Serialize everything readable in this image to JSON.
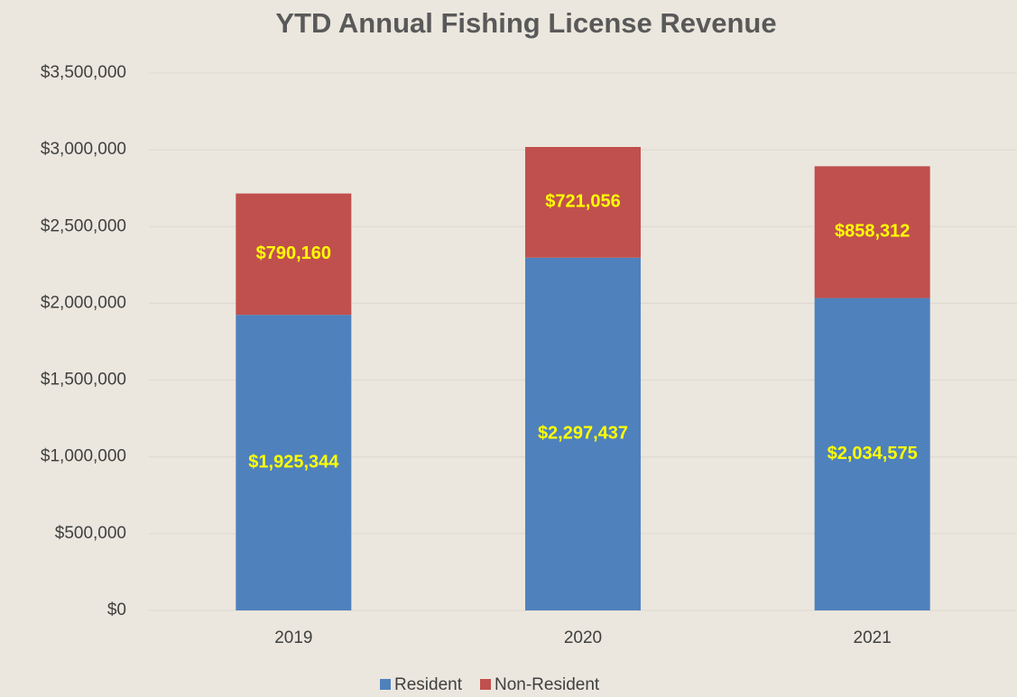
{
  "chart_data": {
    "type": "stacked_bar",
    "title": "YTD Annual Fishing License Revenue",
    "categories": [
      "2019",
      "2020",
      "2021"
    ],
    "series": [
      {
        "name": "Resident",
        "color": "#4f81bd",
        "values": [
          1925344,
          2297437,
          2034575
        ],
        "value_labels": [
          "$1,925,344",
          "$2,297,437",
          "$2,034,575"
        ]
      },
      {
        "name": "Non-Resident",
        "color": "#c0504d",
        "values": [
          790160,
          721056,
          858312
        ],
        "value_labels": [
          "$790,160",
          "$721,056",
          "$858,312"
        ]
      }
    ],
    "ylim": [
      0,
      3500000
    ],
    "yticks": [
      {
        "value": 0,
        "label": "$0"
      },
      {
        "value": 500000,
        "label": "$500,000"
      },
      {
        "value": 1000000,
        "label": "$1,000,000"
      },
      {
        "value": 1500000,
        "label": "$1,500,000"
      },
      {
        "value": 2000000,
        "label": "$2,000,000"
      },
      {
        "value": 2500000,
        "label": "$2,500,000"
      },
      {
        "value": 3000000,
        "label": "$3,000,000"
      },
      {
        "value": 3500000,
        "label": "$3,500,000"
      }
    ],
    "grid": true,
    "legend": "bottom",
    "value_label_color": "#ffff00"
  }
}
